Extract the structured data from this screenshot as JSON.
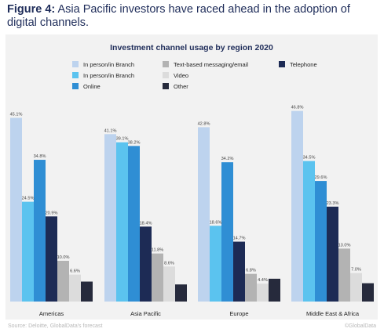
{
  "caption": {
    "label": "Figure 4:",
    "text": " Asia Pacific investors have raced ahead in the adoption of digital channels."
  },
  "footer": {
    "source": "Source: Deloitte, GlobalData's forecast",
    "copyright": "©GlobalData"
  },
  "chart_data": {
    "type": "bar",
    "title": "Investment channel usage by region 2020",
    "categories": [
      "Americas",
      "Asia Pacific",
      "Europe",
      "Middle East & Africa"
    ],
    "ylim": [
      0,
      50
    ],
    "grid": false,
    "legend_position": "top",
    "series": [
      {
        "name": "In person/in Branch",
        "color": "#bdd3ee",
        "values": [
          45.1,
          41.1,
          42.8,
          46.8
        ],
        "labels": [
          "45.1%",
          "41.1%",
          "42.8%",
          "46.8%"
        ]
      },
      {
        "name": "In person/in Branch",
        "color": "#5bc3ef",
        "values": [
          24.5,
          39.1,
          18.6,
          34.5
        ],
        "labels": [
          "24.5%",
          "39.1%",
          "18.6%",
          "34.5%"
        ]
      },
      {
        "name": "Online",
        "color": "#2f8ed4",
        "values": [
          34.8,
          38.2,
          34.2,
          29.6
        ],
        "labels": [
          "34.8%",
          "38.2%",
          "34.2%",
          "29.6%"
        ]
      },
      {
        "name": "Telephone",
        "color": "#1d2b55",
        "values": [
          20.9,
          18.4,
          14.7,
          23.3
        ],
        "labels": [
          "20.9%",
          "18.4%",
          "14.7%",
          "23.3%"
        ]
      },
      {
        "name": "Text-based messaging/email",
        "color": "#b3b3b3",
        "values": [
          10.0,
          11.8,
          6.8,
          13.0
        ],
        "labels": [
          "10.0%",
          "11.8%",
          "6.8%",
          "13.0%"
        ]
      },
      {
        "name": "Video",
        "color": "#dcdcdc",
        "values": [
          6.6,
          8.6,
          4.4,
          7.0
        ],
        "labels": [
          "6.6%",
          "8.6%",
          "4.4%",
          "7.0%"
        ]
      },
      {
        "name": "Other",
        "color": "#262a3c",
        "values": [
          4.9,
          4.2,
          5.6,
          4.5
        ],
        "labels": [
          "",
          "",
          "",
          ""
        ]
      }
    ],
    "legend_order": [
      0,
      1,
      2,
      4,
      5,
      6,
      3
    ]
  }
}
